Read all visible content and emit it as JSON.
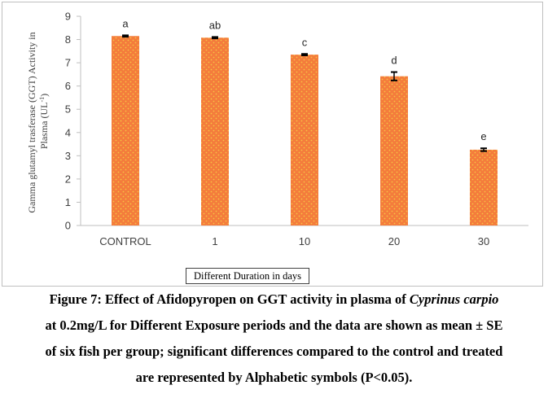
{
  "chart_data": {
    "type": "bar",
    "categories": [
      "CONTROL",
      "1",
      "10",
      "20",
      "30"
    ],
    "values": [
      8.15,
      8.08,
      7.35,
      6.42,
      3.26
    ],
    "errors": [
      0.03,
      0.03,
      0.03,
      0.18,
      0.06
    ],
    "significance_labels": [
      "a",
      "ab",
      "c",
      "d",
      "e"
    ],
    "xlabel": "Different Duration in days",
    "ylabel_line1": "Gamma glutamyl trasferase (GGT) Activity in",
    "ylabel_line2_prefix": "Plasma (UL",
    "ylabel_line2_sup": "-1",
    "ylabel_line2_suffix": ")",
    "ylim": [
      0,
      9
    ],
    "yticks": [
      0,
      1,
      2,
      3,
      4,
      5,
      6,
      7,
      8,
      9
    ],
    "grid": false,
    "bar_color": "#f47c3c",
    "bar_dot_color": "#f6c244"
  },
  "caption": {
    "line1_prefix": "Figure 7: Effect of Afidopyropen on GGT activity in plasma of ",
    "line1_italic": "Cyprinus carpio",
    "line2": "at 0.2mg/L for Different Exposure periods and the data are shown as mean ± SE",
    "line3": "of six fish per group; significant differences compared to the control and treated",
    "line4": "are represented by Alphabetic symbols (P<0.05)."
  }
}
